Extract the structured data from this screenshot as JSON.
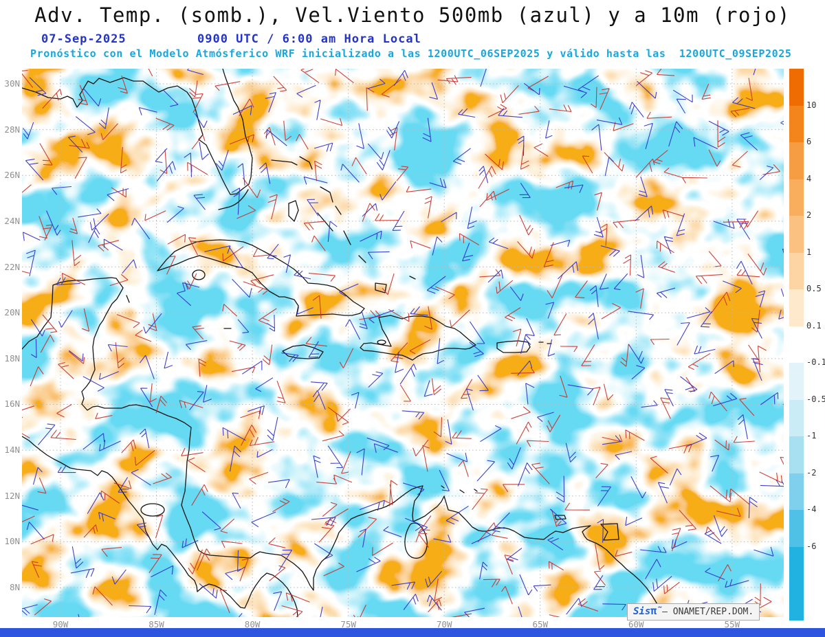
{
  "header": {
    "title": "Adv. Temp. (somb.), Vel.Viento 500mb (azul) y a 10m (rojo)",
    "date": "07-Sep-2025",
    "time": "0900 UTC / 6:00 am Hora Local",
    "forecast_note": "Pronóstico con el Modelo Atmósferico WRF inicializado a las 1200UTC_06SEP2025 y válido hasta las  1200UTC_09SEP2025"
  },
  "attribution": {
    "brand": "Sis",
    "brand_symbol": "π̃",
    "text": "– ONAMET/REP.DOM."
  },
  "colors": {
    "title": "#111111",
    "datetime": "#2433c8",
    "forecast": "#16a7e0",
    "axis-label": "#909090",
    "gridline": "#b8b8b8",
    "coastline": "#141414",
    "colorbar-label": "#333333",
    "brand": "#1d5fd0",
    "bottom-bar": "#2e55e0"
  },
  "chart_data": {
    "type": "heatmap",
    "title": "Adv. Temp. (somb.), Vel.Viento 500mb (azul) y a 10m (rojo)",
    "valid_datetime": "07-Sep-2025 0900 UTC / 6:00 am Hora Local",
    "model_note": "Modelo Atmósferico WRF inicializado a las 1200UTC_06SEP2025, válido hasta las 1200UTC_09SEP2025",
    "shaded_field": "Adv. Temp. (somb.)",
    "vector_overlays": [
      {
        "name": "Vel.Viento 500mb",
        "color_label": "azul",
        "color": "#3030cc"
      },
      {
        "name": "Vel.Viento a 10m",
        "color_label": "rojo",
        "color": "#cc3028"
      }
    ],
    "lat_ticks": [
      "30N",
      "28N",
      "26N",
      "24N",
      "22N",
      "20N",
      "18N",
      "16N",
      "14N",
      "12N",
      "10N",
      "8N"
    ],
    "lon_ticks": [
      "90W",
      "85W",
      "80W",
      "75W",
      "70W",
      "65W",
      "60W",
      "55W"
    ],
    "colorbar_labels": [
      "10",
      "6",
      "4",
      "2",
      "1",
      "0.5",
      "0.1",
      "-0.1",
      "-0.5",
      "-1",
      "-2",
      "-4",
      "-6"
    ],
    "colorbar_colors": [
      "#ee6c02",
      "#f3851c",
      "#f69c42",
      "#f9ae5e",
      "#fbc180",
      "#fdd5a5",
      "#fee9cd",
      "#ffffff",
      "#e2f4fa",
      "#c9ecf7",
      "#a8e0f2",
      "#7fd0ec",
      "#4fc0e6",
      "#22b2e2"
    ],
    "legend_position": "right",
    "grid": "dotted 2deg lat x 5deg lon"
  }
}
